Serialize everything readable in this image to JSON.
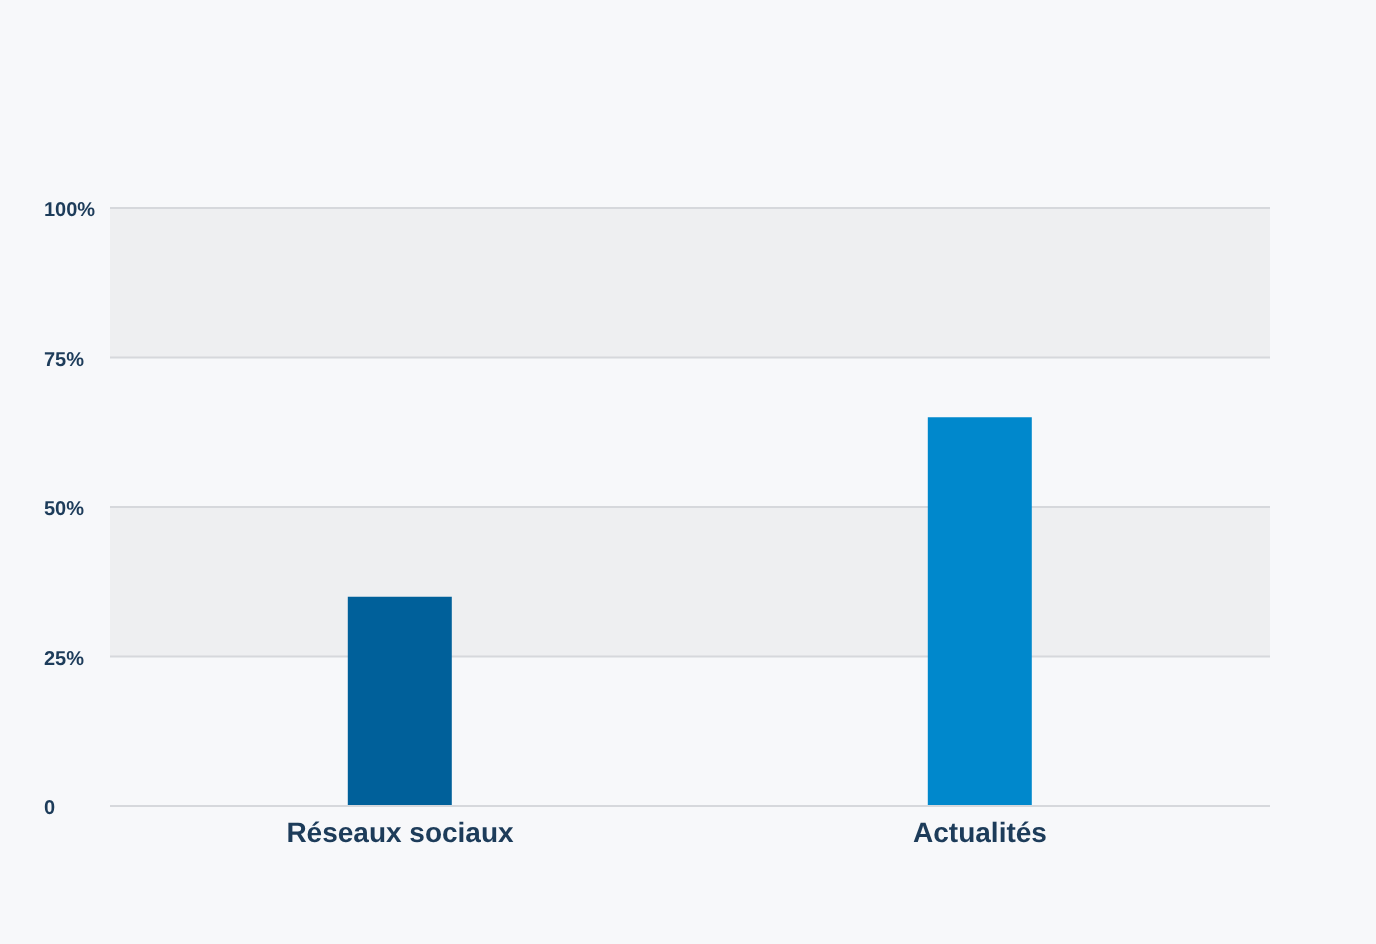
{
  "chart_data": {
    "type": "bar",
    "categories": [
      "Réseaux sociaux",
      "Actualités"
    ],
    "values": [
      35,
      65
    ],
    "colors": [
      "#00609a",
      "#0088cc"
    ],
    "ylim": [
      0,
      100
    ],
    "yticks": [
      0,
      {
        "value": 25,
        "label": "25%"
      },
      {
        "value": 50,
        "label": "50%"
      },
      {
        "value": 75,
        "label": "75%"
      },
      {
        "value": 100,
        "label": "100%"
      }
    ],
    "grid": "y"
  }
}
